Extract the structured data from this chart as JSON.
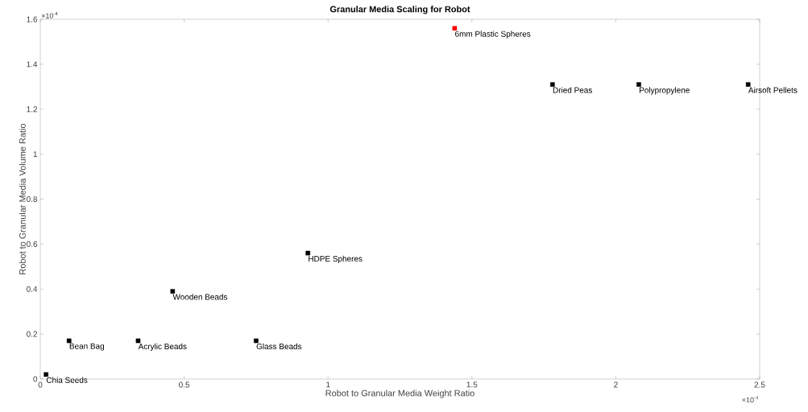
{
  "chart_data": {
    "type": "scatter",
    "title": "Granular Media Scaling for Robot",
    "xlabel": "Robot to Granular Media Weight Ratio",
    "ylabel": "Robot to Granular Media Volume Ratio",
    "x": [
      0.02,
      0.1,
      0.34,
      0.46,
      0.75,
      0.93,
      1.44,
      1.78,
      2.08,
      2.46
    ],
    "values": [
      0.02,
      0.17,
      0.17,
      0.39,
      0.17,
      0.56,
      1.56,
      1.31,
      1.31,
      1.31
    ],
    "colors": [
      "#000000",
      "#000000",
      "#000000",
      "#000000",
      "#000000",
      "#000000",
      "#ff0000",
      "#000000",
      "#000000",
      "#000000"
    ],
    "marker": "square",
    "xlim": [
      0,
      2.5
    ],
    "ylim": [
      0,
      1.6
    ],
    "xticks": [
      0,
      0.5,
      1,
      1.5,
      2,
      2.5
    ],
    "yticks": [
      0,
      0.2,
      0.4,
      0.6,
      0.8,
      1,
      1.2,
      1.4,
      1.6
    ],
    "annotations": [
      "×10$^{-4}$",
      "×10$^{-4}$",
      {
        "text": "Chia Seeds",
        "x": 0.02,
        "y": 0.02
      },
      {
        "text": "Bean Bag",
        "x": 0.1,
        "y": 0.17
      },
      {
        "text": "Acrylic Beads",
        "x": 0.34,
        "y": 0.17
      },
      {
        "text": "Wooden Beads",
        "x": 0.46,
        "y": 0.39
      },
      {
        "text": "Glass Beads",
        "x": 0.75,
        "y": 0.17
      },
      {
        "text": "HDPE Spheres",
        "x": 0.93,
        "y": 0.56
      },
      {
        "text": "6mm Plastic Spheres",
        "x": 1.44,
        "y": 1.56
      },
      {
        "text": "Dried Peas",
        "x": 1.78,
        "y": 1.31
      },
      {
        "text": "Polypropylene",
        "x": 2.08,
        "y": 1.31
      },
      {
        "text": "Airsoft Pellets",
        "x": 2.46,
        "y": 1.31
      }
    ]
  }
}
